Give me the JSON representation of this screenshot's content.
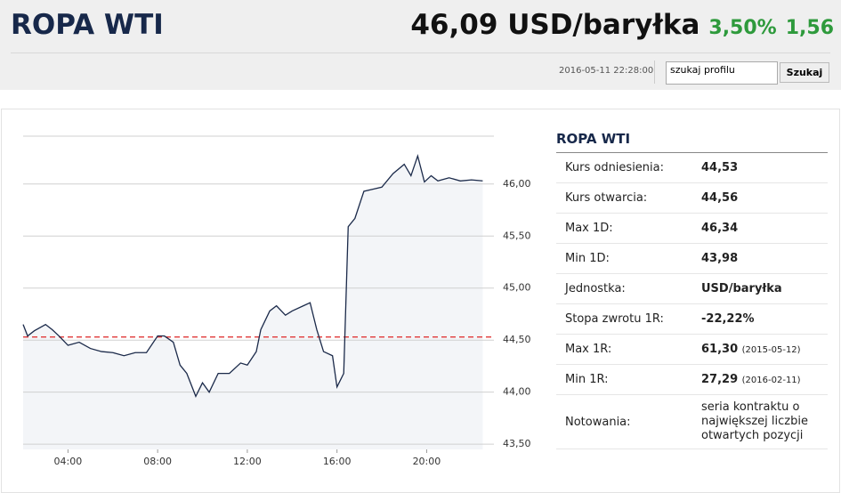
{
  "header": {
    "title": "ROPA WTI",
    "price": "46,09 USD/baryłka",
    "change_pct": "3,50%",
    "change": "1,56",
    "timestamp": "2016-05-11 22:28:00",
    "search_placeholder": "szukaj profilu",
    "search_button": "Szukaj"
  },
  "table": {
    "title": "ROPA WTI",
    "rows": [
      {
        "label": "Kurs odniesienia:",
        "value": "44,53"
      },
      {
        "label": "Kurs otwarcia:",
        "value": "44,56"
      },
      {
        "label": "Max 1D:",
        "value": "46,34"
      },
      {
        "label": "Min 1D:",
        "value": "43,98"
      },
      {
        "label": "Jednostka:",
        "value": "USD/baryłka"
      },
      {
        "label": "Stopa zwrotu 1R:",
        "value": "-22,22%"
      },
      {
        "label": "Max 1R:",
        "value": "61,30",
        "note": "(2015-05-12)"
      },
      {
        "label": "Min 1R:",
        "value": "27,29",
        "note": "(2016-02-11)"
      },
      {
        "label": "Notowania:",
        "value": "seria kontraktu o największej liczbie otwartych pozycji"
      }
    ]
  },
  "chart_data": {
    "type": "line",
    "color": "#1b2a4a",
    "fill": "#f3f5f8",
    "reference_line": 44.53,
    "reference_color": "#e03838",
    "x": [
      2.0,
      2.2,
      2.5,
      3.0,
      3.3,
      3.6,
      4.0,
      4.5,
      5.0,
      5.5,
      6.0,
      6.5,
      7.0,
      7.5,
      8.0,
      8.3,
      8.7,
      9.0,
      9.3,
      9.7,
      10.0,
      10.3,
      10.7,
      11.2,
      11.7,
      12.0,
      12.4,
      12.6,
      13.0,
      13.3,
      13.7,
      14.0,
      14.5,
      14.8,
      15.1,
      15.4,
      15.8,
      16.0,
      16.3,
      16.5,
      16.8,
      17.2,
      17.6,
      18.0,
      18.5,
      19.0,
      19.3,
      19.6,
      19.9,
      20.2,
      20.5,
      21.0,
      21.5,
      22.0,
      22.5
    ],
    "values": [
      44.65,
      44.54,
      44.59,
      44.65,
      44.6,
      44.54,
      44.45,
      44.48,
      44.42,
      44.39,
      44.38,
      44.35,
      44.38,
      44.38,
      44.54,
      44.54,
      44.48,
      44.26,
      44.18,
      43.96,
      44.09,
      44.0,
      44.18,
      44.18,
      44.28,
      44.26,
      44.39,
      44.6,
      44.78,
      44.83,
      44.74,
      44.78,
      44.83,
      44.86,
      44.6,
      44.39,
      44.35,
      44.05,
      44.18,
      45.59,
      45.67,
      45.93,
      45.95,
      45.97,
      46.1,
      46.19,
      46.08,
      46.27,
      46.02,
      46.08,
      46.03,
      46.06,
      46.03,
      46.04,
      46.03
    ],
    "xlim": [
      2,
      23
    ],
    "xticks": [
      {
        "value": 4,
        "label": "04:00"
      },
      {
        "value": 8,
        "label": "08:00"
      },
      {
        "value": 12,
        "label": "12:00"
      },
      {
        "value": 16,
        "label": "16:00"
      },
      {
        "value": 20,
        "label": "20:00"
      }
    ],
    "ylim": [
      43.45,
      46.46
    ],
    "yticks": [
      {
        "value": 43.5,
        "label": "43,50"
      },
      {
        "value": 44,
        "label": "44,00"
      },
      {
        "value": 44.5,
        "label": "44,50"
      },
      {
        "value": 45,
        "label": "45,00"
      },
      {
        "value": 45.5,
        "label": "45,50"
      },
      {
        "value": 46,
        "label": "46,00"
      }
    ],
    "grid": true
  }
}
